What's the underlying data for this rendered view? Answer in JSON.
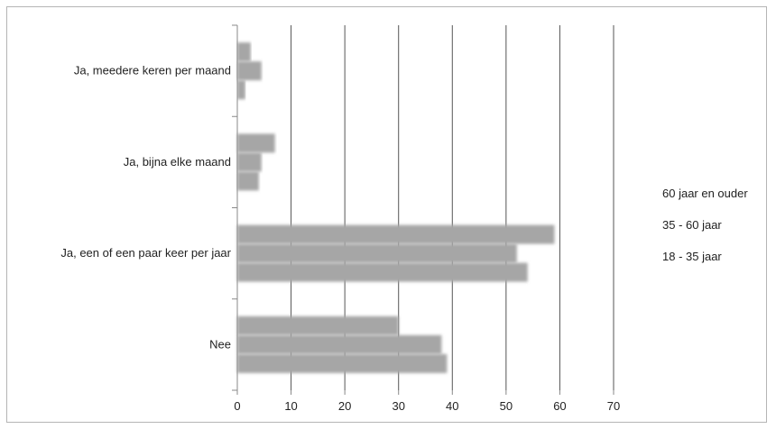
{
  "chart_data": {
    "type": "bar",
    "orientation": "horizontal",
    "title": "",
    "xlabel": "",
    "ylabel": "",
    "xlim": [
      0,
      70
    ],
    "x_ticks": [
      0,
      10,
      20,
      30,
      40,
      50,
      60,
      70
    ],
    "x_tick_labels": [
      "0",
      "10",
      "20",
      "30",
      "40",
      "50",
      "60",
      "70"
    ],
    "categories": [
      "Ja, meedere keren per maand",
      "Ja, bijna elke maand",
      "Ja, een of een paar keer per jaar",
      "Nee"
    ],
    "series": [
      {
        "name": "60 jaar en ouder",
        "values": [
          2.5,
          7,
          59,
          30
        ]
      },
      {
        "name": "35 - 60 jaar",
        "values": [
          4.5,
          4.5,
          52,
          38
        ]
      },
      {
        "name": "18 - 35 jaar",
        "values": [
          1.5,
          4,
          54,
          39
        ]
      }
    ],
    "grid": "vertical",
    "legend_position": "right",
    "colors": {
      "bar": "#a6a6a6",
      "grid": "#555555",
      "axis": "#888888"
    }
  }
}
